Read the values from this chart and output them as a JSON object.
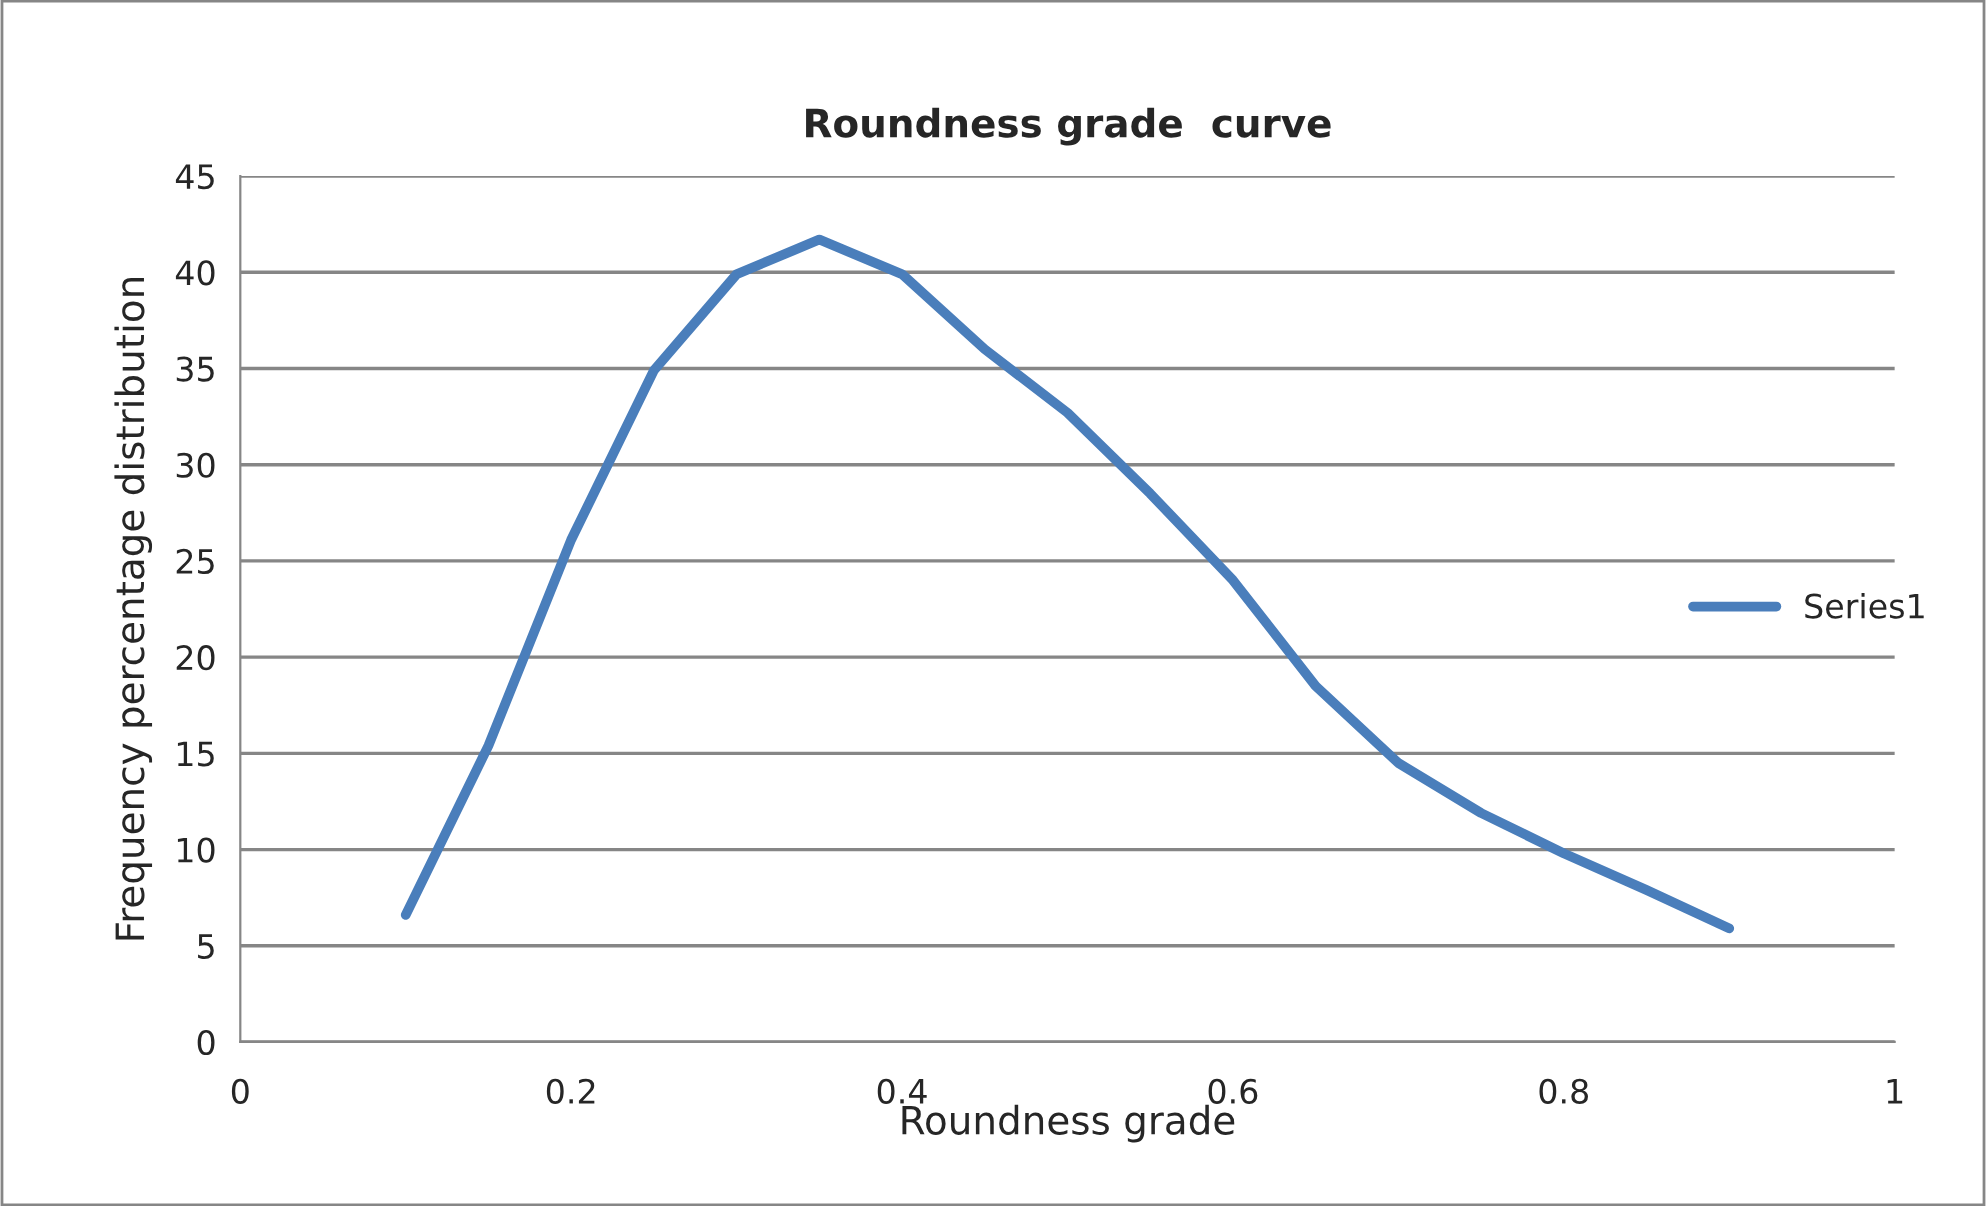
{
  "chart_data": {
    "type": "line",
    "title": "Roundness grade  curve",
    "xlabel": "Roundness grade",
    "ylabel": "Frequency percentage distribution",
    "x": [
      0.1,
      0.15,
      0.2,
      0.25,
      0.3,
      0.35,
      0.4,
      0.45,
      0.5,
      0.55,
      0.6,
      0.65,
      0.7,
      0.75,
      0.8,
      0.85,
      0.9
    ],
    "series": [
      {
        "name": "Series1",
        "color": "#4a7ebb",
        "values": [
          6.6,
          15.4,
          26.1,
          34.9,
          39.9,
          41.7,
          39.9,
          36.0,
          32.7,
          28.5,
          24.0,
          18.5,
          14.5,
          11.9,
          9.8,
          7.9,
          5.9
        ]
      }
    ],
    "xlim": [
      0,
      1
    ],
    "xticks": [
      0,
      0.2,
      0.4,
      0.6,
      0.8,
      1
    ],
    "ylim": [
      0,
      45
    ],
    "yticks": [
      0,
      5,
      10,
      15,
      20,
      25,
      30,
      35,
      40,
      45
    ],
    "grid": "y",
    "legend": "right",
    "marker": "none",
    "line_style": "solid"
  }
}
